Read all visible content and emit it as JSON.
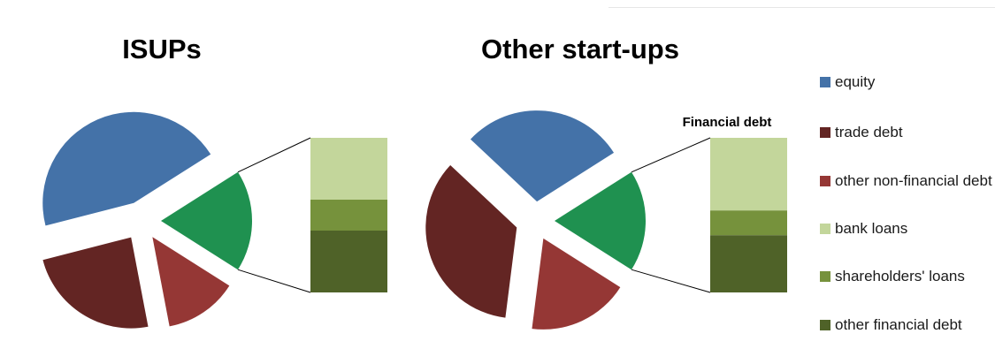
{
  "colors": {
    "equity": "#4472A8",
    "trade_debt": "#632523",
    "other_non_financial_debt": "#953735",
    "financial_debt": "#1F9150",
    "bank_loans": "#C3D69B",
    "shareholders_loans": "#76923C",
    "other_financial_debt": "#4F6228",
    "connector": "#000000"
  },
  "legend": [
    {
      "label": "equity",
      "color": "#4472A8"
    },
    {
      "label": "trade debt",
      "color": "#632523"
    },
    {
      "label": "other non-financial debt",
      "color": "#953735"
    },
    {
      "label": "bank loans",
      "color": "#C3D69B"
    },
    {
      "label": "shareholders' loans",
      "color": "#76923C"
    },
    {
      "label": "other financial debt",
      "color": "#4F6228"
    }
  ],
  "chart_data": [
    {
      "type": "pie",
      "title": "ISUPs",
      "slices": [
        {
          "label": "financial debt",
          "value": 18
        },
        {
          "label": "other non-financial debt",
          "value": 13
        },
        {
          "label": "trade debt",
          "value": 24
        },
        {
          "label": "equity",
          "value": 45
        }
      ],
      "breakdown": {
        "title": "",
        "segments": [
          {
            "label": "bank loans",
            "value": 40
          },
          {
            "label": "shareholders' loans",
            "value": 20
          },
          {
            "label": "other financial debt",
            "value": 40
          }
        ]
      }
    },
    {
      "type": "pie",
      "title": "Other start-ups",
      "slices": [
        {
          "label": "financial debt",
          "value": 18
        },
        {
          "label": "other non-financial debt",
          "value": 18
        },
        {
          "label": "trade debt",
          "value": 35
        },
        {
          "label": "equity",
          "value": 29
        }
      ],
      "breakdown": {
        "title": "Financial debt",
        "segments": [
          {
            "label": "bank loans",
            "value": 47
          },
          {
            "label": "shareholders' loans",
            "value": 16
          },
          {
            "label": "other financial debt",
            "value": 37
          }
        ]
      }
    }
  ]
}
